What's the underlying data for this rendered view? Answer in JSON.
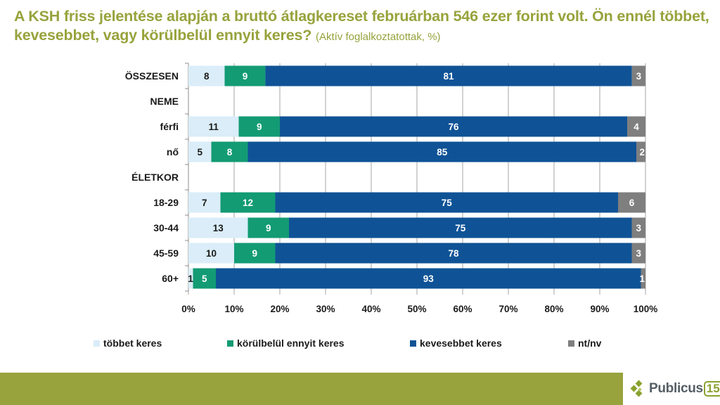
{
  "slide": {
    "title_main": "A KSH friss jelentése alapján a bruttó átlagkereset februárban 546 ezer forint volt. Ön ennél többet, kevesebbet, vagy körülbelül ennyit keres?",
    "title_sub": "(Aktív foglalkoztatottak, %)",
    "logo_text": "Publicus",
    "logo_number": "15",
    "footer_color": "#98a33d",
    "title_color": "#97a33c"
  },
  "chart_data": {
    "type": "bar",
    "orientation": "horizontal",
    "stacked": "percent",
    "title": "A KSH friss jelentése alapján a bruttó átlagkereset februárban 546 ezer forint volt. Ön ennél többet, kevesebbet, vagy körülbelül ennyit keres? (Aktív foglalkoztatottak, %)",
    "xlabel": "",
    "ylabel": "",
    "xlim": [
      0,
      100
    ],
    "grid": true,
    "x_ticks": [
      "0%",
      "10%",
      "20%",
      "30%",
      "40%",
      "50%",
      "60%",
      "70%",
      "80%",
      "90%",
      "100%"
    ],
    "categories": [
      "ÖSSZESEN",
      "NEME",
      "férfi",
      "nő",
      "ÉLETKOR",
      "18-29",
      "30-44",
      "45-59",
      "60+"
    ],
    "series": [
      {
        "name": "többet keres",
        "color": "#daedf8",
        "label_color": "#1a1a1a",
        "values": [
          8,
          null,
          11,
          5,
          null,
          7,
          13,
          10,
          1
        ]
      },
      {
        "name": "körülbelül ennyit keres",
        "color": "#139b74",
        "label_color": "#ffffff",
        "values": [
          9,
          null,
          9,
          8,
          null,
          12,
          9,
          9,
          5
        ]
      },
      {
        "name": "kevesebbet keres",
        "color": "#0f5396",
        "label_color": "#ffffff",
        "values": [
          81,
          null,
          76,
          85,
          null,
          75,
          75,
          78,
          93
        ]
      },
      {
        "name": "nt/nv",
        "color": "#7f7f7f",
        "label_color": "#ffffff",
        "values": [
          3,
          null,
          4,
          2,
          null,
          6,
          3,
          3,
          1
        ]
      }
    ],
    "legend_position": "bottom"
  }
}
